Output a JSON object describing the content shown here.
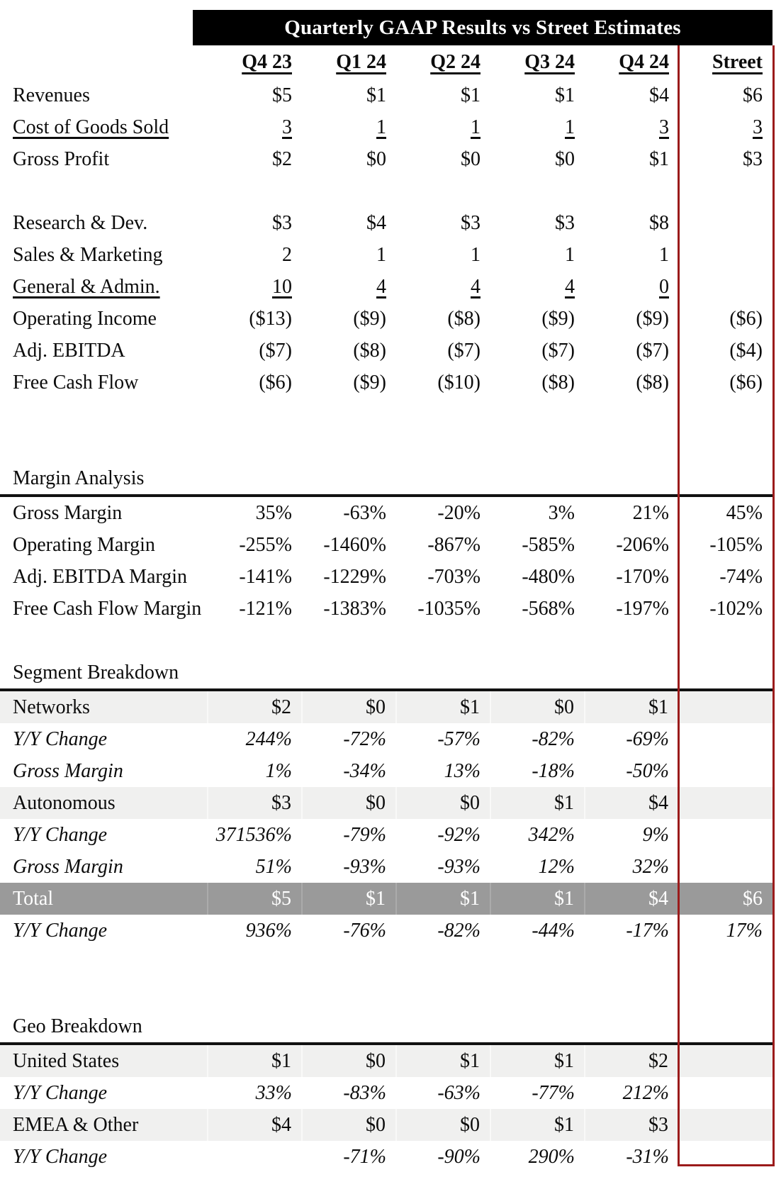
{
  "title": "Quarterly GAAP Results vs Street Estimates",
  "columns": [
    "Q4 23",
    "Q1 24",
    "Q2 24",
    "Q3 24",
    "Q4 24",
    "Street"
  ],
  "colors": {
    "header_bg": "#000000",
    "accent_red": "#9B1B1B",
    "row_shade_light": "#F0F0EF",
    "row_shade_dark": "#9A9A9A",
    "total_row_text": "#FFFFFF"
  },
  "rows": [
    {
      "type": "data",
      "label": "Revenues",
      "values": [
        "$5",
        "$1",
        "$1",
        "$1",
        "$4",
        "$6"
      ]
    },
    {
      "type": "data",
      "label": "Cost of Goods Sold",
      "underline": true,
      "values": [
        "3",
        "1",
        "1",
        "1",
        "3",
        "3"
      ]
    },
    {
      "type": "data",
      "label": "Gross Profit",
      "values": [
        "$2",
        "$0",
        "$0",
        "$0",
        "$1",
        "$3"
      ]
    },
    {
      "type": "blank"
    },
    {
      "type": "data",
      "label": "Research & Dev.",
      "values": [
        "$3",
        "$4",
        "$3",
        "$3",
        "$8",
        ""
      ]
    },
    {
      "type": "data",
      "label": "Sales & Marketing",
      "values": [
        "2",
        "1",
        "1",
        "1",
        "1",
        ""
      ]
    },
    {
      "type": "data",
      "label": "General & Admin.",
      "underline": true,
      "values": [
        "10",
        "4",
        "4",
        "4",
        "0",
        ""
      ]
    },
    {
      "type": "data",
      "label": "Operating Income",
      "values": [
        "($13)",
        "($9)",
        "($8)",
        "($9)",
        "($9)",
        "($6)"
      ]
    },
    {
      "type": "data",
      "label": "Adj. EBITDA",
      "values": [
        "($7)",
        "($8)",
        "($7)",
        "($7)",
        "($7)",
        "($4)"
      ]
    },
    {
      "type": "data",
      "label": "Free Cash Flow",
      "values": [
        "($6)",
        "($9)",
        "($10)",
        "($8)",
        "($8)",
        "($6)"
      ]
    },
    {
      "type": "blank"
    },
    {
      "type": "blank"
    },
    {
      "type": "section",
      "label": "Margin Analysis"
    },
    {
      "type": "data",
      "label": "Gross Margin",
      "values": [
        "35%",
        "-63%",
        "-20%",
        "3%",
        "21%",
        "45%"
      ]
    },
    {
      "type": "data",
      "label": "Operating Margin",
      "values": [
        "-255%",
        "-1460%",
        "-867%",
        "-585%",
        "-206%",
        "-105%"
      ]
    },
    {
      "type": "data",
      "label": "Adj. EBITDA Margin",
      "values": [
        "-141%",
        "-1229%",
        "-703%",
        "-480%",
        "-170%",
        "-74%"
      ]
    },
    {
      "type": "data",
      "label": "Free Cash Flow Margin",
      "values": [
        "-121%",
        "-1383%",
        "-1035%",
        "-568%",
        "-197%",
        "-102%"
      ]
    },
    {
      "type": "blank"
    },
    {
      "type": "section",
      "label": "Segment Breakdown"
    },
    {
      "type": "data",
      "label": "Networks",
      "shade": "light",
      "values": [
        "$2",
        "$0",
        "$1",
        "$0",
        "$1",
        ""
      ]
    },
    {
      "type": "data",
      "label": "Y/Y Change",
      "italic": true,
      "values": [
        "244%",
        "-72%",
        "-57%",
        "-82%",
        "-69%",
        ""
      ]
    },
    {
      "type": "data",
      "label": "Gross Margin",
      "italic": true,
      "values": [
        "1%",
        "-34%",
        "13%",
        "-18%",
        "-50%",
        ""
      ]
    },
    {
      "type": "data",
      "label": "Autonomous",
      "shade": "light",
      "values": [
        "$3",
        "$0",
        "$0",
        "$1",
        "$4",
        ""
      ]
    },
    {
      "type": "data",
      "label": "Y/Y Change",
      "italic": true,
      "values": [
        "371536%",
        "-79%",
        "-92%",
        "342%",
        "9%",
        ""
      ]
    },
    {
      "type": "data",
      "label": "Gross Margin",
      "italic": true,
      "values": [
        "51%",
        "-93%",
        "-93%",
        "12%",
        "32%",
        ""
      ]
    },
    {
      "type": "data",
      "label": "Total",
      "shade": "dark",
      "values": [
        "$5",
        "$1",
        "$1",
        "$1",
        "$4",
        "$6"
      ]
    },
    {
      "type": "data",
      "label": "Y/Y Change",
      "italic": true,
      "values": [
        "936%",
        "-76%",
        "-82%",
        "-44%",
        "-17%",
        "17%"
      ]
    },
    {
      "type": "blank"
    },
    {
      "type": "blank"
    },
    {
      "type": "section",
      "label": "Geo Breakdown"
    },
    {
      "type": "data",
      "label": "United States",
      "shade": "light",
      "values": [
        "$1",
        "$0",
        "$1",
        "$1",
        "$2",
        ""
      ]
    },
    {
      "type": "data",
      "label": "Y/Y Change",
      "italic": true,
      "values": [
        "33%",
        "-83%",
        "-63%",
        "-77%",
        "212%",
        ""
      ]
    },
    {
      "type": "data",
      "label": "EMEA & Other",
      "shade": "light",
      "values": [
        "$4",
        "$0",
        "$0",
        "$1",
        "$3",
        ""
      ]
    },
    {
      "type": "data",
      "label": "Y/Y Change",
      "italic": true,
      "values": [
        "",
        "-71%",
        "-90%",
        "290%",
        "-31%",
        ""
      ]
    }
  ]
}
